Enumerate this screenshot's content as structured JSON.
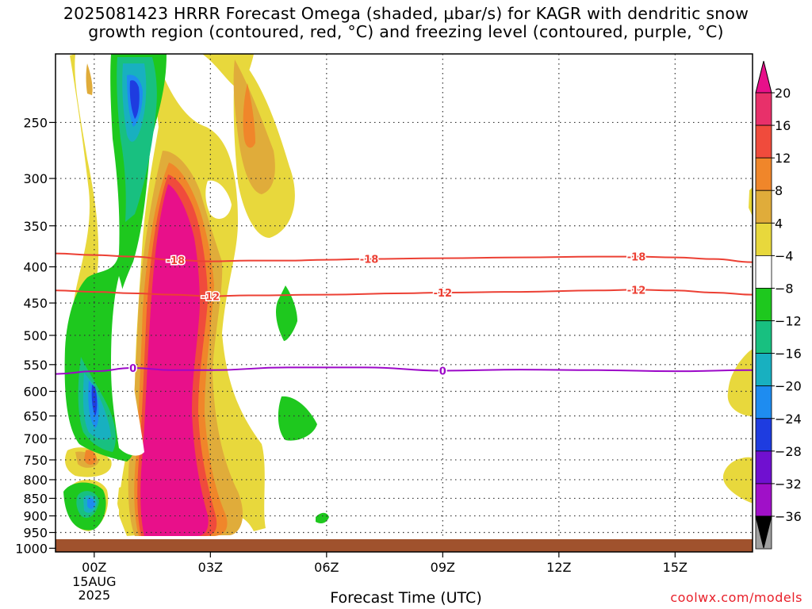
{
  "chart_data": {
    "type": "heatmap",
    "title_lines": [
      "2025081423 HRRR Forecast Omega (shaded, µbar/s) for KAGR with dendritic snow",
      "growth region (contoured, red, °C) and freezing level (contoured, purple, °C)"
    ],
    "xlabel": "Forecast Time (UTC)",
    "x_ticks": [
      {
        "value": 0,
        "label": "00Z",
        "sub": [
          "15AUG",
          "2025"
        ]
      },
      {
        "value": 3,
        "label": "03Z",
        "sub": []
      },
      {
        "value": 6,
        "label": "06Z",
        "sub": []
      },
      {
        "value": 9,
        "label": "09Z",
        "sub": []
      },
      {
        "value": 12,
        "label": "12Z",
        "sub": []
      },
      {
        "value": 15,
        "label": "15Z",
        "sub": []
      }
    ],
    "xlim": [
      -1,
      17
    ],
    "y_ticks": [
      250,
      300,
      350,
      400,
      450,
      500,
      550,
      600,
      650,
      700,
      750,
      800,
      850,
      900,
      950,
      1000
    ],
    "ylim": [
      200,
      1012
    ],
    "y_scale": "log-pressure",
    "grid": true,
    "colorbar": {
      "labels": [
        "20",
        "16",
        "12",
        "8",
        "4",
        "−4",
        "−8",
        "−12",
        "−16",
        "−20",
        "−24",
        "−28",
        "−32",
        "−36"
      ],
      "colors": [
        "#e8306a",
        "#f04b3c",
        "#f0862a",
        "#e0ac3a",
        "#e8d83c",
        "#ffffff",
        "#1ec81e",
        "#18c080",
        "#18b0c0",
        "#1e8cf0",
        "#1e3ce0",
        "#7010d0",
        "#a010c8",
        "#a0a0a0"
      ],
      "top_arrow_color": "#e8108a",
      "bottom_arrow_color": "#000000"
    },
    "contours": [
      {
        "level": "-18",
        "color": "#ec4034",
        "points": [
          [
            -1,
            383
          ],
          [
            0,
            385
          ],
          [
            1,
            387
          ],
          [
            2,
            391
          ],
          [
            3,
            393
          ],
          [
            4,
            392
          ],
          [
            5,
            392
          ],
          [
            6,
            391
          ],
          [
            7,
            390
          ],
          [
            9,
            389
          ],
          [
            11,
            388
          ],
          [
            13,
            387
          ],
          [
            14,
            387
          ],
          [
            15,
            388
          ],
          [
            16,
            390
          ],
          [
            17,
            394
          ]
        ],
        "label_x": [
          2.1,
          7.1,
          14.0
        ]
      },
      {
        "level": "-12",
        "color": "#ec4034",
        "points": [
          [
            -1,
            432
          ],
          [
            0,
            434
          ],
          [
            1,
            436
          ],
          [
            2,
            438
          ],
          [
            3,
            440
          ],
          [
            4,
            439
          ],
          [
            6,
            438
          ],
          [
            8,
            436
          ],
          [
            9,
            435
          ],
          [
            11,
            434
          ],
          [
            13,
            432
          ],
          [
            14,
            431
          ],
          [
            15,
            432
          ],
          [
            16,
            435
          ],
          [
            17,
            438
          ]
        ],
        "label_x": [
          3.0,
          9.0,
          14.0
        ]
      },
      {
        "level": "0",
        "color": "#9c08c8",
        "points": [
          [
            -1,
            567
          ],
          [
            0,
            562
          ],
          [
            1,
            556
          ],
          [
            2,
            560
          ],
          [
            3,
            560
          ],
          [
            5,
            555
          ],
          [
            7,
            555
          ],
          [
            9,
            561
          ],
          [
            11,
            559
          ],
          [
            13,
            560
          ],
          [
            15,
            562
          ],
          [
            17,
            560
          ]
        ],
        "label_x": [
          1.0,
          9.0
        ]
      }
    ]
  },
  "branding": {
    "credit": "coolwx.com/models"
  }
}
